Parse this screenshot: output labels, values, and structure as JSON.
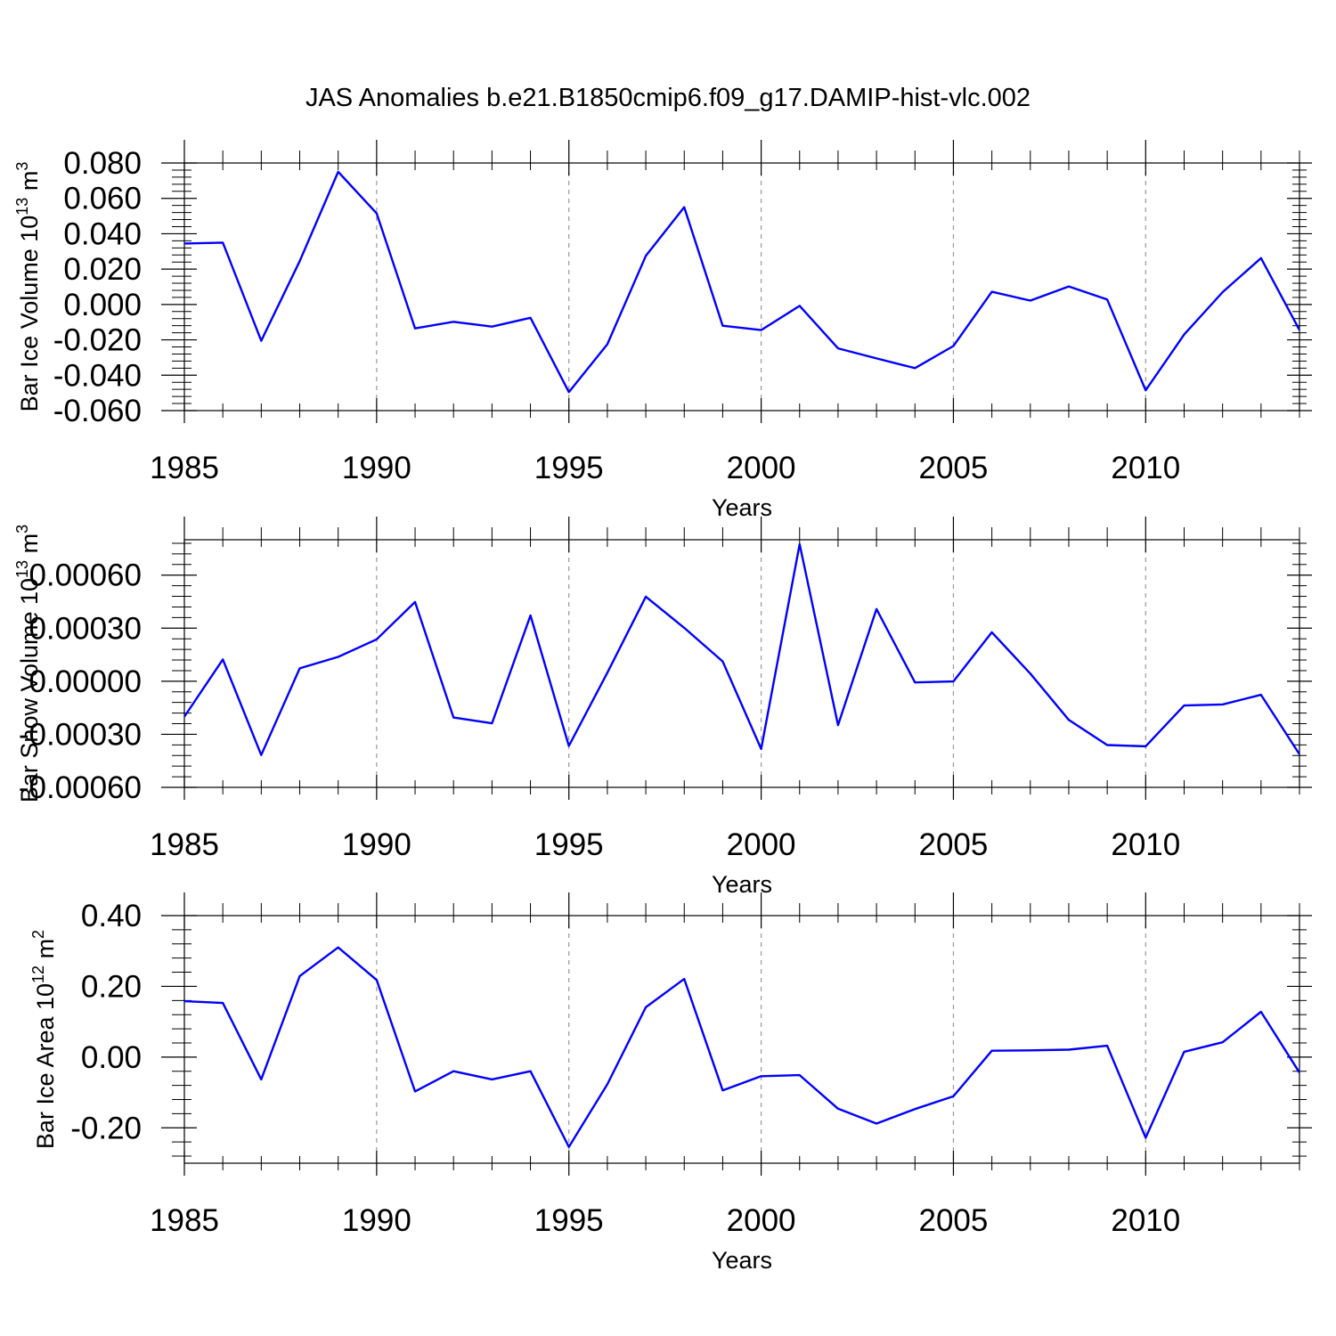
{
  "title": "JAS Anomalies b.e21.B1850cmip6.f09_g17.DAMIP-hist-vlc.002",
  "colors": {
    "line": "#0000ff",
    "axis": "#000000",
    "gridline": "#999999",
    "background": "#ffffff"
  },
  "chart_data": [
    {
      "type": "line",
      "ylabel_main": "Bar Ice Volume 10",
      "ylabel_sup": "13",
      "ylabel_unit": " m",
      "ylabel_unit_sup": "3",
      "xlabel": "Years",
      "xlim": [
        1985,
        2014
      ],
      "ylim": [
        -0.06,
        0.08
      ],
      "xticks": [
        1985,
        1990,
        1995,
        2000,
        2005,
        2010
      ],
      "xtick_labels": [
        "1985",
        "1990",
        "1995",
        "2000",
        "2005",
        "2010"
      ],
      "yticks": [
        -0.06,
        -0.04,
        -0.02,
        0.0,
        0.02,
        0.04,
        0.06,
        0.08
      ],
      "ytick_labels": [
        "-0.060",
        "-0.040",
        "-0.020",
        "0.000",
        "0.020",
        "0.040",
        "0.060",
        "0.080"
      ],
      "grid": "dashed vertical at major x ticks",
      "series": [
        {
          "name": "Bar Ice Volume anomaly",
          "x": [
            1985,
            1986,
            1987,
            1988,
            1989,
            1990,
            1991,
            1992,
            1993,
            1994,
            1995,
            1996,
            1997,
            1998,
            1999,
            2000,
            2001,
            2002,
            2003,
            2004,
            2005,
            2006,
            2007,
            2008,
            2009,
            2010,
            2011,
            2012,
            2013,
            2014
          ],
          "values": [
            0.0345,
            0.035,
            -0.0205,
            0.0245,
            0.075,
            0.0515,
            -0.0135,
            -0.0098,
            -0.0125,
            -0.0075,
            -0.0495,
            -0.0225,
            0.0275,
            0.055,
            -0.012,
            -0.0145,
            -0.0008,
            -0.0248,
            -0.0305,
            -0.036,
            -0.0235,
            0.0072,
            0.0022,
            0.0102,
            0.0028,
            -0.0485,
            -0.017,
            0.007,
            0.0262,
            -0.0145
          ]
        }
      ]
    },
    {
      "type": "line",
      "ylabel_main": "Bar Snow Volume 10",
      "ylabel_sup": "13",
      "ylabel_unit": " m",
      "ylabel_unit_sup": "3",
      "xlabel": "Years",
      "xlim": [
        1985,
        2014
      ],
      "ylim": [
        -0.0006,
        0.0008
      ],
      "xticks": [
        1985,
        1990,
        1995,
        2000,
        2005,
        2010
      ],
      "xtick_labels": [
        "1985",
        "1990",
        "1995",
        "2000",
        "2005",
        "2010"
      ],
      "yticks": [
        -0.0006,
        -0.0003,
        0.0,
        0.0003,
        0.0006
      ],
      "ytick_labels": [
        "-0.00060",
        "-0.00030",
        "0.00000",
        "0.00030",
        "0.00060"
      ],
      "grid": "dashed vertical at major x ticks",
      "series": [
        {
          "name": "Bar Snow Volume anomaly",
          "x": [
            1985,
            1986,
            1987,
            1988,
            1989,
            1990,
            1991,
            1992,
            1993,
            1994,
            1995,
            1996,
            1997,
            1998,
            1999,
            2000,
            2001,
            2002,
            2003,
            2004,
            2005,
            2006,
            2007,
            2008,
            2009,
            2010,
            2011,
            2012,
            2013,
            2014
          ],
          "values": [
            -0.0002,
            0.000123,
            -0.000417,
            7.3e-05,
            0.000138,
            0.000237,
            0.000448,
            -0.000205,
            -0.000238,
            0.000372,
            -0.000366,
            4.8e-05,
            0.000478,
            0.000302,
            0.000112,
            -0.000383,
            0.000775,
            -0.000248,
            0.000408,
            -7e-06,
            -1e-06,
            0.000277,
            4.3e-05,
            -0.000219,
            -0.000361,
            -0.000368,
            -0.000137,
            -0.000131,
            -7.7e-05,
            -0.000413
          ]
        }
      ]
    },
    {
      "type": "line",
      "ylabel_main": "Bar Ice Area 10",
      "ylabel_sup": "12",
      "ylabel_unit": " m",
      "ylabel_unit_sup": "2",
      "xlabel": "Years",
      "xlim": [
        1985,
        2014
      ],
      "ylim": [
        -0.3,
        0.4
      ],
      "xticks": [
        1985,
        1990,
        1995,
        2000,
        2005,
        2010
      ],
      "xtick_labels": [
        "1985",
        "1990",
        "1995",
        "2000",
        "2005",
        "2010"
      ],
      "yticks": [
        -0.2,
        0.0,
        0.2,
        0.4
      ],
      "ytick_labels": [
        "-0.20",
        "0.00",
        "0.20",
        "0.40"
      ],
      "grid": "dashed vertical at major x ticks",
      "series": [
        {
          "name": "Bar Ice Area anomaly",
          "x": [
            1985,
            1986,
            1987,
            1988,
            1989,
            1990,
            1991,
            1992,
            1993,
            1994,
            1995,
            1996,
            1997,
            1998,
            1999,
            2000,
            2001,
            2002,
            2003,
            2004,
            2005,
            2006,
            2007,
            2008,
            2009,
            2010,
            2011,
            2012,
            2013,
            2014
          ],
          "values": [
            0.158,
            0.153,
            -0.063,
            0.229,
            0.31,
            0.218,
            -0.097,
            -0.04,
            -0.063,
            -0.04,
            -0.254,
            -0.077,
            0.141,
            0.221,
            -0.094,
            -0.054,
            -0.051,
            -0.146,
            -0.188,
            -0.147,
            -0.111,
            0.018,
            0.019,
            0.021,
            0.032,
            -0.228,
            0.015,
            0.042,
            0.128,
            -0.044
          ]
        }
      ]
    }
  ]
}
